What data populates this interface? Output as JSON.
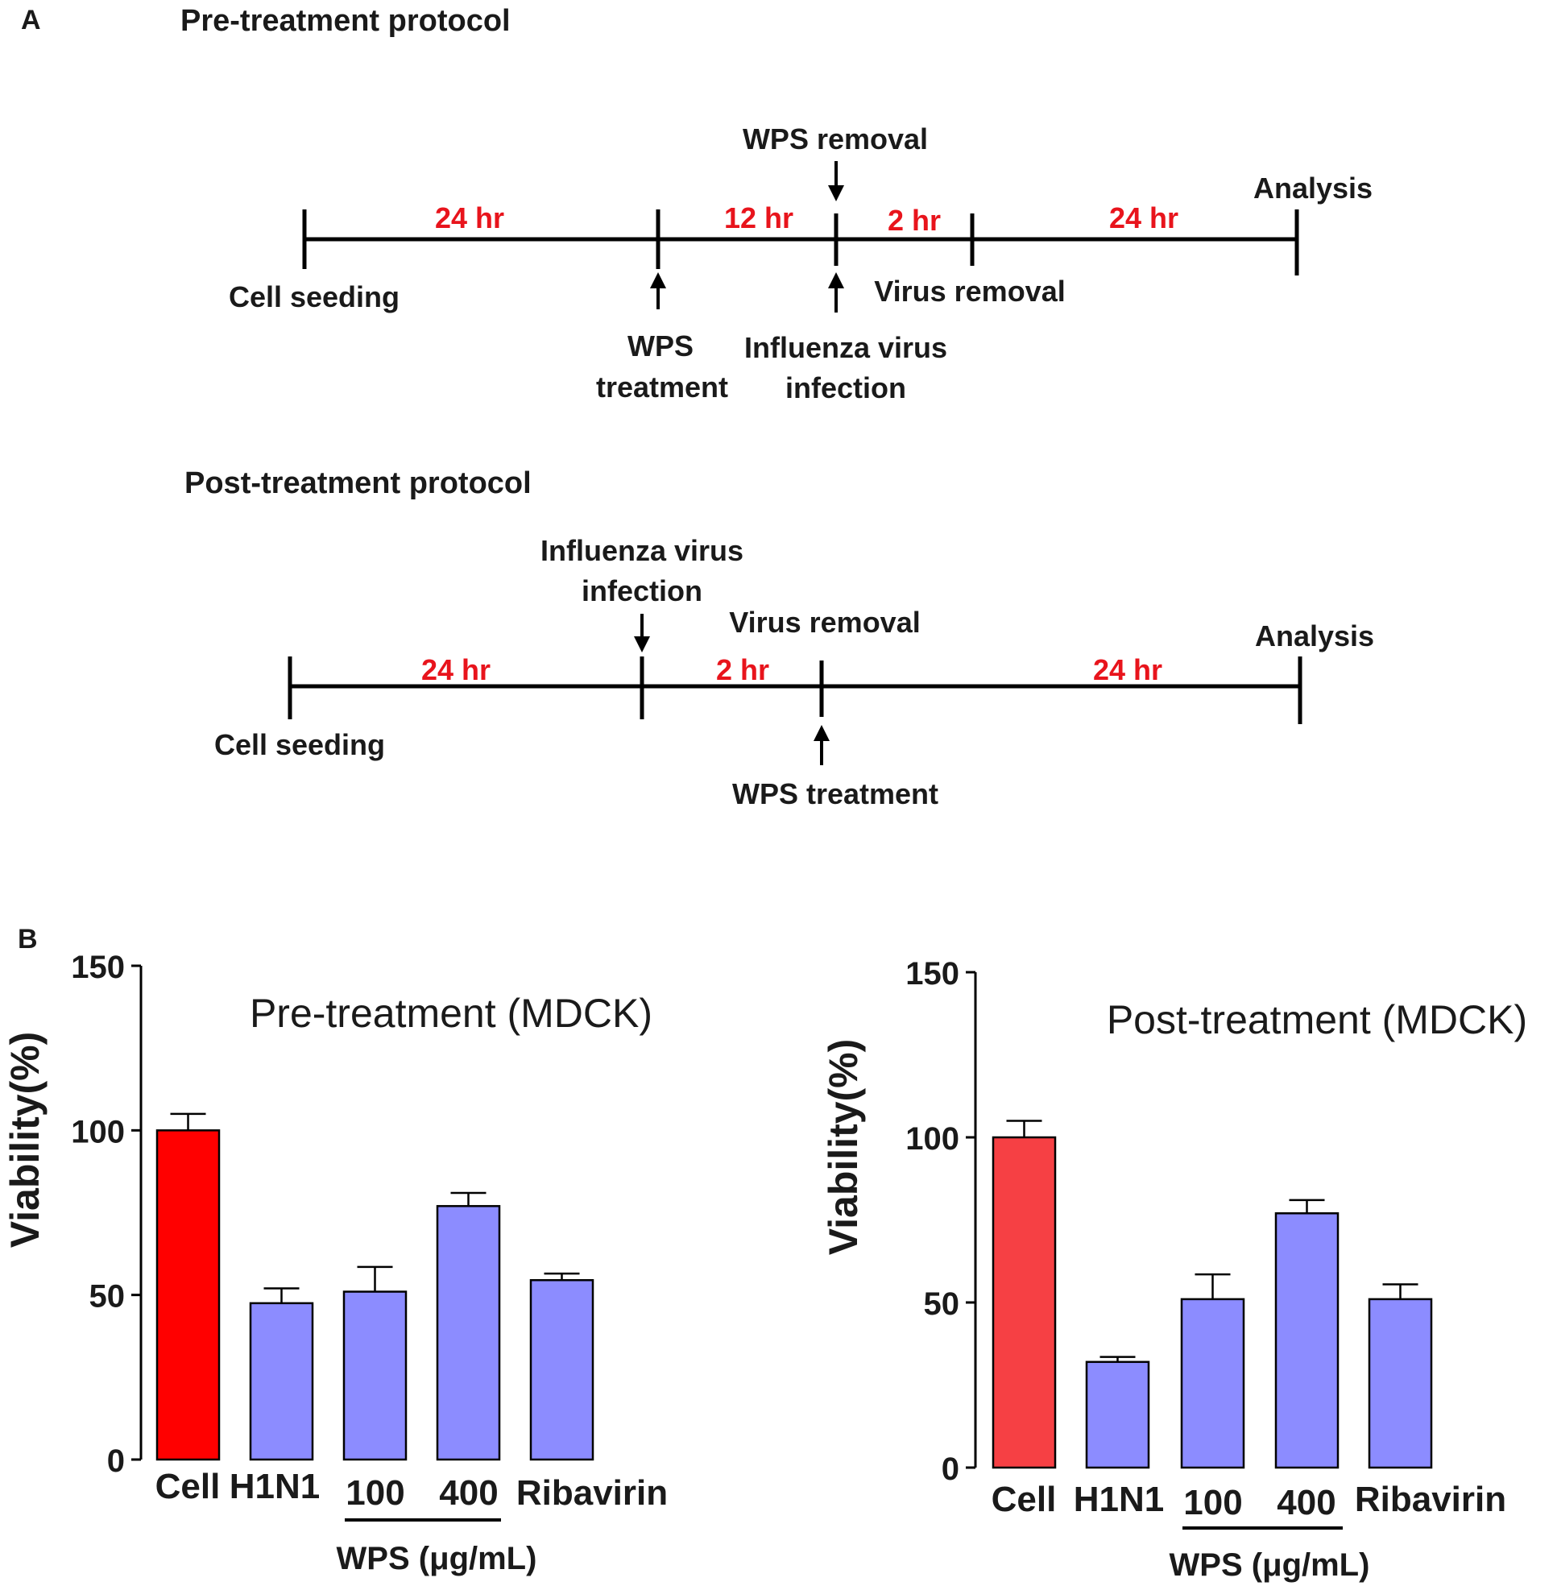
{
  "panel_a": {
    "label": "A",
    "pre": {
      "title": "Pre-treatment protocol",
      "durations": [
        "24 hr",
        "12 hr",
        "2 hr",
        "24 hr"
      ],
      "cell_seeding": "Cell seeding",
      "wps_treatment_1": "WPS",
      "wps_treatment_2": "treatment",
      "wps_removal": "WPS removal",
      "infection_1": "Influenza virus",
      "infection_2": "infection",
      "virus_removal": "Virus removal",
      "analysis": "Analysis"
    },
    "post": {
      "title": "Post-treatment protocol",
      "durations": [
        "24 hr",
        "2 hr",
        "24 hr"
      ],
      "cell_seeding": "Cell seeding",
      "infection_1": "Influenza virus",
      "infection_2": "infection",
      "virus_removal": "Virus removal",
      "wps_treatment": "WPS treatment",
      "analysis": "Analysis"
    }
  },
  "panel_b": {
    "label": "B",
    "wps_group_label": "WPS (μg/mL)"
  },
  "chart_data": [
    {
      "type": "bar",
      "title": "Pre-treatment (MDCK)",
      "ylabel": "Viability(%)",
      "xlabel": "",
      "ylim": [
        0,
        150
      ],
      "yticks": [
        0,
        50,
        100,
        150
      ],
      "categories": [
        "Cell",
        "H1N1",
        "100",
        "400",
        "Ribavirin"
      ],
      "values": [
        100,
        47.5,
        51,
        77,
        54.5
      ],
      "errors": [
        5,
        4.5,
        7.5,
        4,
        2
      ],
      "colors": [
        "#ff0000",
        "#8c8cff",
        "#8c8cff",
        "#8c8cff",
        "#8c8cff"
      ]
    },
    {
      "type": "bar",
      "title": "Post-treatment (MDCK)",
      "ylabel": "Viability(%)",
      "xlabel": "",
      "ylim": [
        0,
        150
      ],
      "yticks": [
        0,
        50,
        100,
        150
      ],
      "categories": [
        "Cell",
        "H1N1",
        "100",
        "400",
        "Ribavirin"
      ],
      "values": [
        100,
        32,
        51,
        77,
        51
      ],
      "errors": [
        5,
        1.5,
        7.5,
        4,
        4.5
      ],
      "colors": [
        "#f64044",
        "#8c8cff",
        "#8c8cff",
        "#8c8cff",
        "#8c8cff"
      ]
    }
  ]
}
